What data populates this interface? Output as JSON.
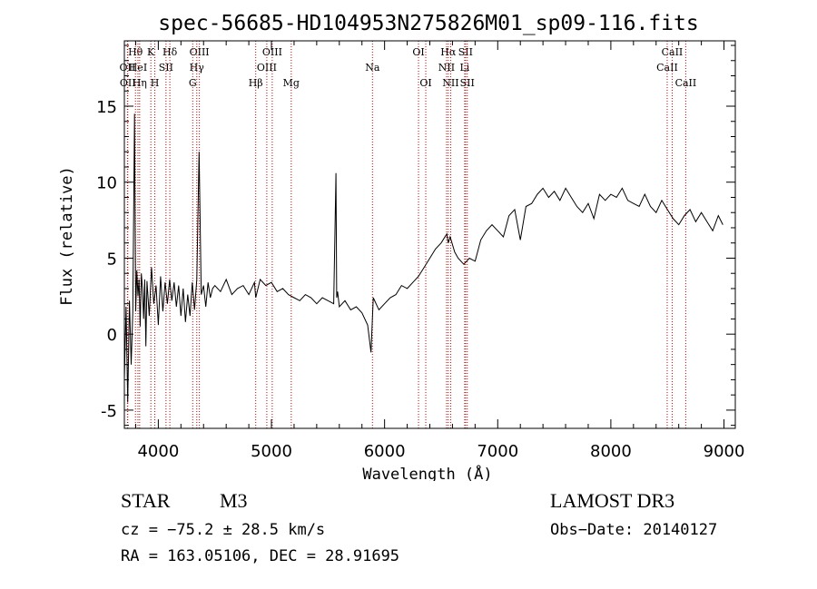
{
  "chart_data": {
    "type": "line",
    "title": "spec-56685-HD104953N275826M01_sp09-116.fits",
    "xlabel": "Wavelength (Å)",
    "ylabel": "Flux (relative)",
    "xlim": [
      3700,
      9100
    ],
    "ylim": [
      -6.2,
      19.3
    ],
    "x_ticks": [
      4000,
      5000,
      6000,
      7000,
      8000,
      9000
    ],
    "y_ticks": [
      -5,
      0,
      5,
      10,
      15
    ],
    "grid": false,
    "line_color": "#000000",
    "marker_color": "#cc0000",
    "series": [
      {
        "x": [
          3700,
          3715,
          3730,
          3745,
          3760,
          3775,
          3790,
          3800,
          3810,
          3820,
          3830,
          3840,
          3850,
          3860,
          3870,
          3880,
          3890,
          3900,
          3920,
          3940,
          3960,
          3980,
          4000,
          4020,
          4040,
          4060,
          4080,
          4100,
          4120,
          4140,
          4160,
          4180,
          4200,
          4220,
          4240,
          4260,
          4280,
          4300,
          4320,
          4340,
          4360,
          4380,
          4400,
          4420,
          4440,
          4460,
          4480,
          4500,
          4550,
          4600,
          4650,
          4700,
          4750,
          4800,
          4850,
          4861,
          4900,
          4950,
          5000,
          5050,
          5100,
          5150,
          5200,
          5250,
          5300,
          5350,
          5400,
          5450,
          5500,
          5550,
          5570,
          5577,
          5585,
          5600,
          5650,
          5700,
          5750,
          5800,
          5850,
          5880,
          5900,
          5950,
          6000,
          6050,
          6100,
          6150,
          6200,
          6250,
          6300,
          6350,
          6400,
          6450,
          6500,
          6550,
          6563,
          6580,
          6620,
          6650,
          6700,
          6750,
          6800,
          6850,
          6900,
          6950,
          7000,
          7050,
          7100,
          7150,
          7200,
          7250,
          7300,
          7350,
          7400,
          7450,
          7500,
          7550,
          7600,
          7650,
          7700,
          7750,
          7800,
          7850,
          7900,
          7950,
          8000,
          8050,
          8100,
          8150,
          8200,
          8250,
          8300,
          8350,
          8400,
          8450,
          8500,
          8550,
          8600,
          8650,
          8700,
          8750,
          8800,
          8850,
          8900,
          8950,
          8990
        ],
        "y": [
          -3.0,
          1.8,
          -4.5,
          2.2,
          -2.0,
          1.5,
          14.5,
          1.5,
          4.2,
          2.5,
          3.6,
          0.5,
          4.0,
          3.0,
          1.0,
          3.6,
          -0.8,
          3.5,
          1.2,
          4.4,
          2.0,
          3.2,
          0.6,
          3.8,
          1.5,
          3.4,
          2.0,
          3.6,
          2.2,
          3.4,
          1.8,
          3.2,
          1.2,
          3.0,
          0.8,
          2.6,
          1.2,
          3.4,
          1.6,
          3.6,
          12.0,
          2.6,
          3.2,
          1.8,
          3.4,
          2.4,
          3.0,
          3.2,
          2.8,
          3.6,
          2.6,
          3.0,
          3.2,
          2.6,
          3.4,
          2.4,
          3.6,
          3.2,
          3.4,
          2.8,
          3.0,
          2.6,
          2.4,
          2.2,
          2.6,
          2.4,
          2.0,
          2.4,
          2.2,
          2.0,
          10.6,
          2.4,
          2.8,
          1.8,
          2.2,
          1.6,
          1.8,
          1.4,
          0.6,
          -1.2,
          2.4,
          1.6,
          2.0,
          2.4,
          2.6,
          3.2,
          3.0,
          3.4,
          3.8,
          4.4,
          5.0,
          5.6,
          6.0,
          6.6,
          6.0,
          6.4,
          5.4,
          5.0,
          4.6,
          5.0,
          4.8,
          6.2,
          6.8,
          7.2,
          6.8,
          6.4,
          7.8,
          8.2,
          6.2,
          8.4,
          8.6,
          9.2,
          9.6,
          9.0,
          9.4,
          8.8,
          9.6,
          9.0,
          8.4,
          8.0,
          8.6,
          7.6,
          9.2,
          8.8,
          9.2,
          9.0,
          9.6,
          8.8,
          8.6,
          8.4,
          9.2,
          8.4,
          8.0,
          8.8,
          8.2,
          7.6,
          7.2,
          7.8,
          8.2,
          7.4,
          8.0,
          7.4,
          6.8,
          7.8,
          7.2
        ]
      }
    ],
    "line_markers": [
      {
        "label": "Hθ",
        "x": 3798,
        "row": 1
      },
      {
        "label": "OII",
        "x": 3727,
        "row": 2
      },
      {
        "label": "OII",
        "x": 3730,
        "row": 3
      },
      {
        "label": "HeI",
        "x": 3820,
        "row": 2
      },
      {
        "label": "Hη",
        "x": 3835,
        "row": 3
      },
      {
        "label": "K",
        "x": 3934,
        "row": 1
      },
      {
        "label": "H",
        "x": 3969,
        "row": 3
      },
      {
        "label": "SII",
        "x": 4068,
        "row": 2
      },
      {
        "label": "Hδ",
        "x": 4102,
        "row": 1
      },
      {
        "label": "OIII",
        "x": 4363,
        "row": 1
      },
      {
        "label": "Hγ",
        "x": 4340,
        "row": 2
      },
      {
        "label": "G",
        "x": 4304,
        "row": 3
      },
      {
        "label": "Hβ",
        "x": 4861,
        "row": 3
      },
      {
        "label": "OIII",
        "x": 5007,
        "row": 1
      },
      {
        "label": "OIII",
        "x": 4959,
        "row": 2
      },
      {
        "label": "Mg",
        "x": 5175,
        "row": 3
      },
      {
        "label": "Na",
        "x": 5893,
        "row": 2
      },
      {
        "label": "OI",
        "x": 6300,
        "row": 1
      },
      {
        "label": "OI",
        "x": 6364,
        "row": 3
      },
      {
        "label": "Hα",
        "x": 6563,
        "row": 1
      },
      {
        "label": "NII",
        "x": 6548,
        "row": 2
      },
      {
        "label": "NII",
        "x": 6584,
        "row": 3
      },
      {
        "label": "SII",
        "x": 6716,
        "row": 1
      },
      {
        "label": "Li",
        "x": 6708,
        "row": 2
      },
      {
        "label": "SII",
        "x": 6731,
        "row": 3
      },
      {
        "label": "CaII",
        "x": 8542,
        "row": 1
      },
      {
        "label": "CaII",
        "x": 8498,
        "row": 2
      },
      {
        "label": "CaII",
        "x": 8662,
        "row": 3
      }
    ]
  },
  "info": {
    "class": "STAR",
    "subclass": "M3",
    "survey": "LAMOST DR3",
    "cz": "cz = −75.2 ± 28.5 km/s",
    "obs_date": "Obs−Date: 20140127",
    "coords": "RA = 163.05106, DEC =  28.91695"
  }
}
